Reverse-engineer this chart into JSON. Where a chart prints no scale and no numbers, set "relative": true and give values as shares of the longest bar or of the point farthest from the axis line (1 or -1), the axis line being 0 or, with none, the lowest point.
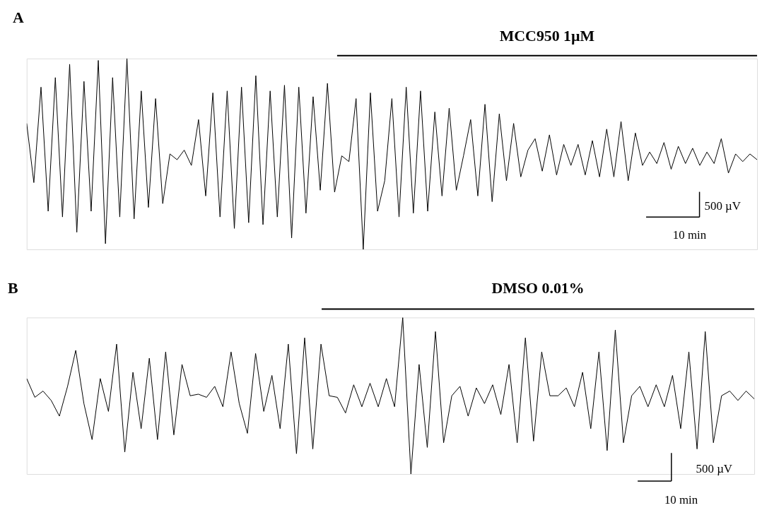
{
  "chart_data": [
    {
      "type": "line",
      "title": "A",
      "relative": true,
      "color": "#000000",
      "marker": "none",
      "grid": false,
      "tick_labels": false,
      "categories": [
        null,
        null,
        null,
        null,
        null,
        null,
        null,
        null,
        null,
        null,
        null,
        null,
        null,
        null,
        null,
        null,
        null,
        null,
        null,
        null,
        null,
        null,
        null,
        null,
        null,
        null,
        null,
        null,
        null,
        null,
        null,
        null,
        null,
        null,
        null,
        null,
        null,
        null,
        null,
        null,
        null,
        null,
        null,
        null,
        null,
        null,
        null,
        null,
        null,
        null,
        null,
        null,
        null,
        null,
        null,
        null,
        null,
        null,
        null,
        null,
        null,
        null,
        null,
        null,
        null,
        null,
        null,
        null,
        null,
        null,
        null,
        null,
        null,
        null,
        null,
        null,
        null,
        null,
        null,
        null,
        null,
        null,
        null,
        null,
        null,
        null,
        null,
        null,
        null,
        null,
        null,
        null,
        null,
        null,
        null,
        null,
        null,
        null,
        null,
        null,
        null,
        null,
        null
      ],
      "values": [
        0.66,
        0.35,
        0.85,
        0.2,
        0.9,
        0.17,
        0.97,
        0.09,
        0.88,
        0.2,
        0.99,
        0.03,
        0.9,
        0.17,
        1.0,
        0.16,
        0.83,
        0.22,
        0.79,
        0.24,
        0.5,
        0.47,
        0.52,
        0.44,
        0.68,
        0.28,
        0.82,
        0.17,
        0.83,
        0.11,
        0.85,
        0.14,
        0.91,
        0.13,
        0.83,
        0.17,
        0.86,
        0.06,
        0.85,
        0.19,
        0.8,
        0.31,
        0.87,
        0.3,
        0.49,
        0.46,
        0.79,
        0.0,
        0.82,
        0.2,
        0.36,
        0.79,
        0.17,
        0.85,
        0.19,
        0.83,
        0.2,
        0.72,
        0.28,
        0.74,
        0.31,
        0.49,
        0.68,
        0.28,
        0.76,
        0.25,
        0.71,
        0.36,
        0.66,
        0.38,
        0.52,
        0.58,
        0.41,
        0.6,
        0.39,
        0.55,
        0.44,
        0.55,
        0.39,
        0.57,
        0.38,
        0.63,
        0.38,
        0.67,
        0.36,
        0.61,
        0.44,
        0.51,
        0.45,
        0.56,
        0.42,
        0.54,
        0.45,
        0.53,
        0.44,
        0.51,
        0.45,
        0.58,
        0.4,
        0.5,
        0.46,
        0.5,
        0.47
      ],
      "annotations": [
        "MCC950 1µM",
        "500 µV",
        "10 min"
      ]
    },
    {
      "type": "line",
      "title": "B",
      "relative": true,
      "color": "#000000",
      "marker": "none",
      "grid": false,
      "tick_labels": false,
      "categories": [
        null,
        null,
        null,
        null,
        null,
        null,
        null,
        null,
        null,
        null,
        null,
        null,
        null,
        null,
        null,
        null,
        null,
        null,
        null,
        null,
        null,
        null,
        null,
        null,
        null,
        null,
        null,
        null,
        null,
        null,
        null,
        null,
        null,
        null,
        null,
        null,
        null,
        null,
        null,
        null,
        null,
        null,
        null,
        null,
        null,
        null,
        null,
        null,
        null,
        null,
        null,
        null,
        null,
        null,
        null,
        null,
        null,
        null,
        null,
        null,
        null,
        null,
        null,
        null,
        null,
        null,
        null,
        null,
        null,
        null,
        null,
        null,
        null,
        null,
        null,
        null,
        null,
        null,
        null,
        null,
        null,
        null,
        null,
        null,
        null,
        null,
        null,
        null,
        null,
        null
      ],
      "values": [
        0.61,
        0.49,
        0.53,
        0.47,
        0.37,
        0.56,
        0.79,
        0.45,
        0.22,
        0.61,
        0.4,
        0.83,
        0.14,
        0.65,
        0.29,
        0.74,
        0.22,
        0.78,
        0.25,
        0.7,
        0.5,
        0.51,
        0.49,
        0.56,
        0.43,
        0.78,
        0.45,
        0.26,
        0.77,
        0.4,
        0.63,
        0.29,
        0.83,
        0.13,
        0.87,
        0.16,
        0.83,
        0.5,
        0.49,
        0.39,
        0.57,
        0.43,
        0.58,
        0.43,
        0.61,
        0.43,
        1.0,
        0.0,
        0.7,
        0.17,
        0.91,
        0.2,
        0.5,
        0.56,
        0.37,
        0.55,
        0.45,
        0.57,
        0.38,
        0.7,
        0.2,
        0.87,
        0.21,
        0.78,
        0.5,
        0.5,
        0.55,
        0.43,
        0.65,
        0.29,
        0.78,
        0.15,
        0.92,
        0.2,
        0.5,
        0.56,
        0.43,
        0.57,
        0.43,
        0.63,
        0.29,
        0.78,
        0.16,
        0.91,
        0.2,
        0.5,
        0.53,
        0.47,
        0.53,
        0.48
      ],
      "annotations": [
        "DMSO 0.01%",
        "500 µV",
        "10 min"
      ]
    }
  ]
}
